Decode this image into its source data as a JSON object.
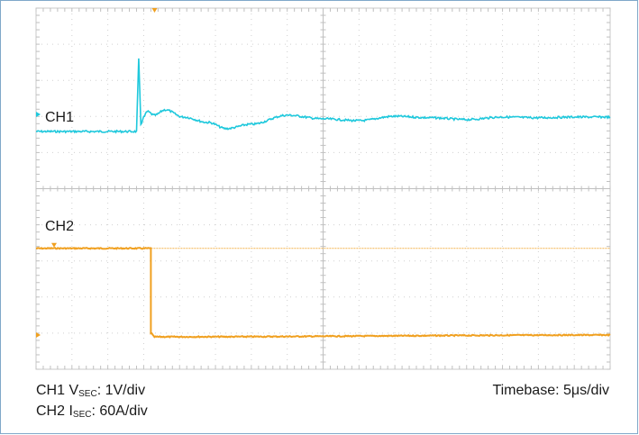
{
  "chart_data": {
    "type": "line",
    "title": "",
    "grid": true,
    "channels": [
      {
        "name": "CH1",
        "color": "#1ec8dc",
        "scale_symbol": "V",
        "scale_subscript": "SEC",
        "scale_text": ": 1V/div",
        "units_per_div": 1,
        "description": "output voltage: flat, sharp spike at load step, damped ringing, settles ~0.4 div higher",
        "x_div": [
          0,
          0.5,
          1,
          2,
          2.8,
          2.86,
          2.92,
          3.0,
          3.1,
          3.3,
          3.6,
          4.1,
          4.8,
          5.3,
          6.0,
          7.0,
          8.0,
          9.0,
          10.0,
          11.0,
          12.0,
          13.0,
          14.0,
          15.0,
          16.0
        ],
        "y_div": [
          0,
          0,
          0,
          0,
          0,
          2.0,
          0.2,
          0.4,
          0.55,
          0.45,
          0.6,
          0.4,
          0.25,
          0.08,
          0.2,
          0.45,
          0.35,
          0.3,
          0.42,
          0.38,
          0.33,
          0.4,
          0.38,
          0.4,
          0.4
        ]
      },
      {
        "name": "CH2",
        "color": "#f0a020",
        "scale_symbol": "I",
        "scale_subscript": "SEC",
        "scale_text": ": 60A/div",
        "units_per_div": 60,
        "description": "secondary current: steps from ~2.4 div to ~0 div at the load step",
        "x_div": [
          0,
          3.2,
          3.2,
          3.3,
          16.0
        ],
        "y_div": [
          2.4,
          2.4,
          0.05,
          -0.05,
          0.0
        ]
      }
    ],
    "reference_line_ch2_y_div": 2.4,
    "load_step_x_div": 3.2,
    "timebase_label": "Timebase: 5μs/div"
  }
}
